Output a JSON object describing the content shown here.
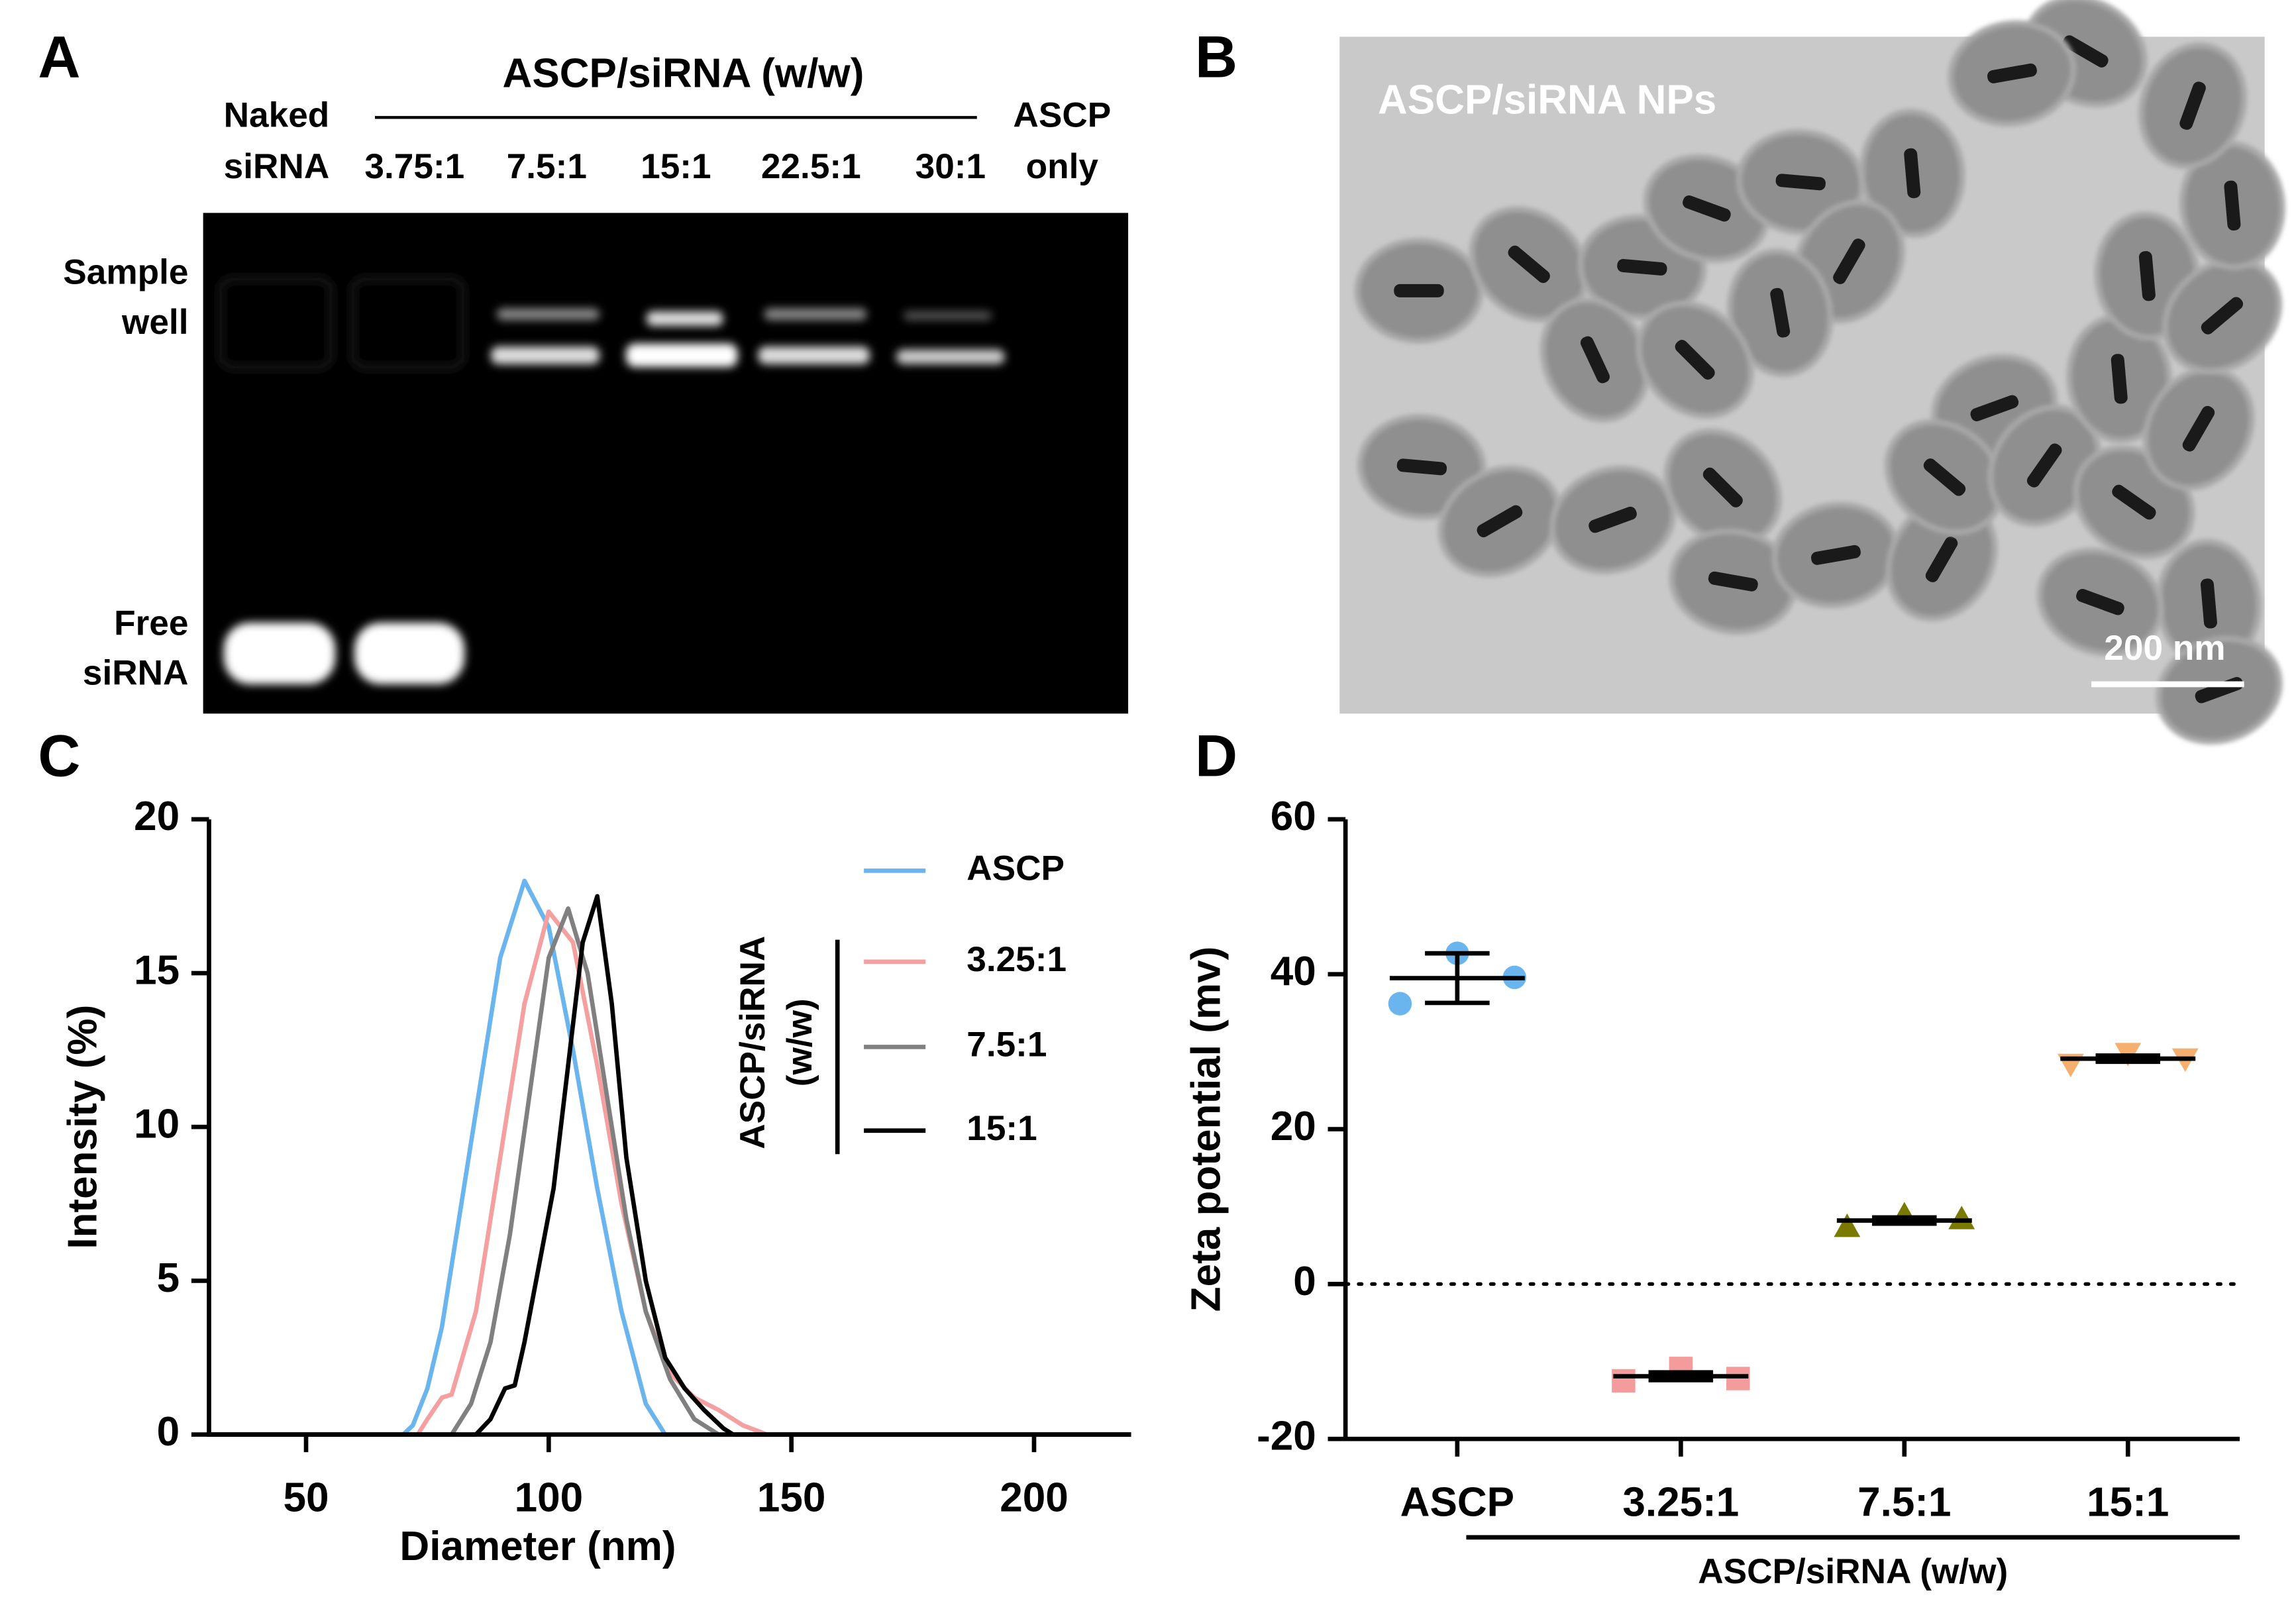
{
  "panel_a": {
    "label": "A",
    "title": "ASCP/siRNA (w/w)",
    "lanes": [
      [
        "Naked",
        "siRNA"
      ],
      [
        "3.75:1"
      ],
      [
        "7.5:1"
      ],
      [
        "15:1"
      ],
      [
        "22.5:1"
      ],
      [
        "30:1"
      ],
      [
        "ASCP",
        "only"
      ]
    ],
    "row_labels": [
      [
        "Sample",
        "well"
      ],
      [
        "Free",
        "siRNA"
      ]
    ]
  },
  "panel_b": {
    "label": "B",
    "caption": "ASCP/siRNA NPs",
    "scale_bar": "200 nm"
  },
  "chart_data": [
    {
      "type": "line",
      "panel_label": "C",
      "x_label": "Diameter (nm)",
      "y_label": "Intensity (%)",
      "xlim": [
        30,
        220
      ],
      "xticks": [
        50,
        100,
        150,
        200
      ],
      "ylim": [
        0,
        20
      ],
      "yticks": [
        0,
        5,
        10,
        15,
        20
      ],
      "legend_title": [
        "ASCP/siRNA",
        "(w/w)"
      ],
      "series": [
        {
          "name": "ASCP",
          "color": "#6bb5ee",
          "x": [
            30,
            70,
            72,
            75,
            78,
            80,
            85,
            90,
            95,
            100,
            105,
            110,
            115,
            120,
            124,
            130,
            220
          ],
          "values": [
            0,
            0,
            0.3,
            1.5,
            3.5,
            5.5,
            10.5,
            15.5,
            18,
            16.5,
            12.5,
            8,
            4,
            1,
            0,
            0,
            0
          ]
        },
        {
          "name": "3.25:1",
          "color": "#f4a0a0",
          "x": [
            30,
            73,
            75,
            78,
            80,
            85,
            90,
            95,
            100,
            105,
            110,
            115,
            120,
            125,
            130,
            135,
            140,
            145,
            220
          ],
          "values": [
            0,
            0,
            0.5,
            1.2,
            1.3,
            4,
            9,
            14,
            17,
            16,
            12,
            7.5,
            4,
            2,
            1.2,
            0.8,
            0.3,
            0,
            0
          ]
        },
        {
          "name": "7.5:1",
          "color": "#808080",
          "x": [
            30,
            80,
            84,
            88,
            92,
            96,
            100,
            104,
            108,
            112,
            116,
            120,
            125,
            130,
            135,
            220
          ],
          "values": [
            0,
            0,
            1,
            3,
            6.5,
            11,
            15.5,
            17.1,
            15,
            11,
            7,
            4,
            1.8,
            0.5,
            0,
            0
          ]
        },
        {
          "name": "15:1",
          "color": "#000000",
          "x": [
            30,
            85,
            88,
            91,
            93,
            95,
            98,
            101,
            104,
            107,
            110,
            113,
            116,
            120,
            124,
            128,
            132,
            136,
            138,
            220
          ],
          "values": [
            0,
            0,
            0.5,
            1.5,
            1.6,
            3,
            5.5,
            8,
            12,
            16,
            17.5,
            14,
            9,
            5,
            2.5,
            1.5,
            0.8,
            0.2,
            0,
            0
          ]
        }
      ]
    },
    {
      "type": "dot",
      "panel_label": "D",
      "x_label": "ASCP/siRNA (w/w)",
      "y_label": "Zeta potential (mv)",
      "categories": [
        "ASCP",
        "3.25:1",
        "7.5:1",
        "15:1"
      ],
      "ylim": [
        -20,
        60
      ],
      "yticks": [
        -20,
        0,
        20,
        40,
        60
      ],
      "reference_line": 0,
      "groups": [
        {
          "color": "#6bb5ee",
          "marker": "circle",
          "values": [
            36.2,
            42.7,
            39.6
          ],
          "mean": 39.5,
          "error": 3.2
        },
        {
          "color": "#f49c9c",
          "marker": "square",
          "values": [
            -12.5,
            -10.9,
            -12.2
          ],
          "mean": -11.9,
          "error": 0.5
        },
        {
          "color": "#7a7a00",
          "marker": "triangle",
          "values": [
            7.4,
            8.9,
            8.4
          ],
          "mean": 8.2,
          "error": 0.4
        },
        {
          "color": "#f5b070",
          "marker": "triangle-down",
          "values": [
            28.4,
            29.8,
            29.1
          ],
          "mean": 29.1,
          "error": 0.4
        }
      ]
    }
  ]
}
